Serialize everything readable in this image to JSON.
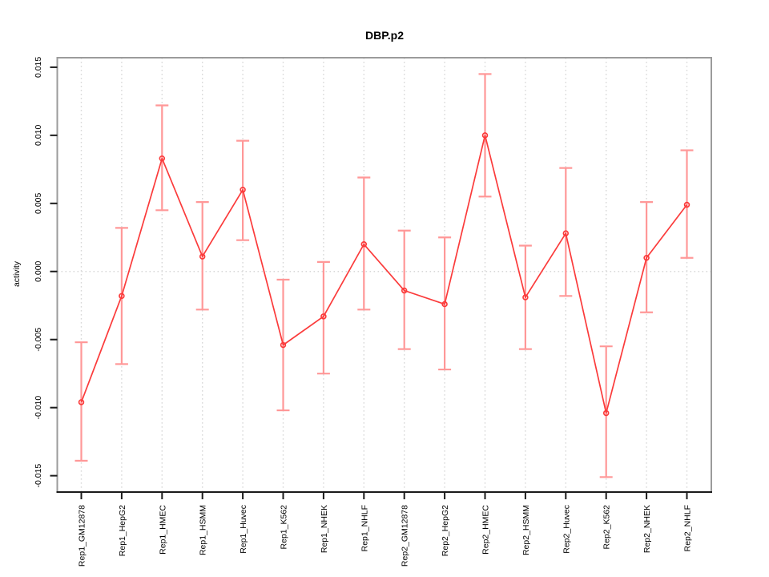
{
  "figure": {
    "background": "#ffffff"
  },
  "chart_data": {
    "type": "line",
    "title": "DBP.p2",
    "xlabel": "",
    "ylabel": "activity",
    "legend": "none",
    "grid": "vertical dotted gridline per category plus dotted zero line",
    "categories": [
      "Rep1_GM12878",
      "Rep1_HepG2",
      "Rep1_HMEC",
      "Rep1_HSMM",
      "Rep1_Huvec",
      "Rep1_K562",
      "Rep1_NHEK",
      "Rep1_NHLF",
      "Rep2_GM12878",
      "Rep2_HepG2",
      "Rep2_HMEC",
      "Rep2_HSMM",
      "Rep2_Huvec",
      "Rep2_K562",
      "Rep2_NHEK",
      "Rep2_NHLF"
    ],
    "series": [
      {
        "name": "activity",
        "marker": "open-circle",
        "values": [
          -0.0096,
          -0.0018,
          0.0083,
          0.0011,
          0.006,
          -0.0054,
          -0.0033,
          0.002,
          -0.0014,
          -0.0024,
          0.01,
          -0.0019,
          0.0028,
          -0.0104,
          0.001,
          0.0049
        ],
        "error_high": [
          -0.0052,
          0.0032,
          0.0122,
          0.0051,
          0.0096,
          -0.0006,
          0.0007,
          0.0069,
          0.003,
          0.0025,
          0.0145,
          0.0019,
          0.0076,
          -0.0055,
          0.0051,
          0.0089
        ],
        "error_low": [
          -0.0139,
          -0.0068,
          0.0045,
          -0.0028,
          0.0023,
          -0.0102,
          -0.0075,
          -0.0028,
          -0.0057,
          -0.0072,
          0.0055,
          -0.0057,
          -0.0018,
          -0.0151,
          -0.003,
          0.001
        ]
      }
    ],
    "y_tick_values": [
      -0.015,
      -0.01,
      -0.005,
      0.0,
      0.005,
      0.01,
      0.015
    ],
    "y_tick_labels": [
      "-0.015",
      "-0.010",
      "-0.005",
      "0.000",
      "0.005",
      "0.010",
      "0.015"
    ],
    "ylim": [
      -0.0162,
      0.0157
    ],
    "zero_line": 0.0,
    "colors": {
      "line": "#fb3b3b",
      "marker": "#fb3b3b",
      "error_bar": "#ff9898",
      "grid": "#d8d8d8",
      "box_border": "#9b9b9b",
      "axis": "#1a1a1a",
      "text": "#000000"
    }
  }
}
